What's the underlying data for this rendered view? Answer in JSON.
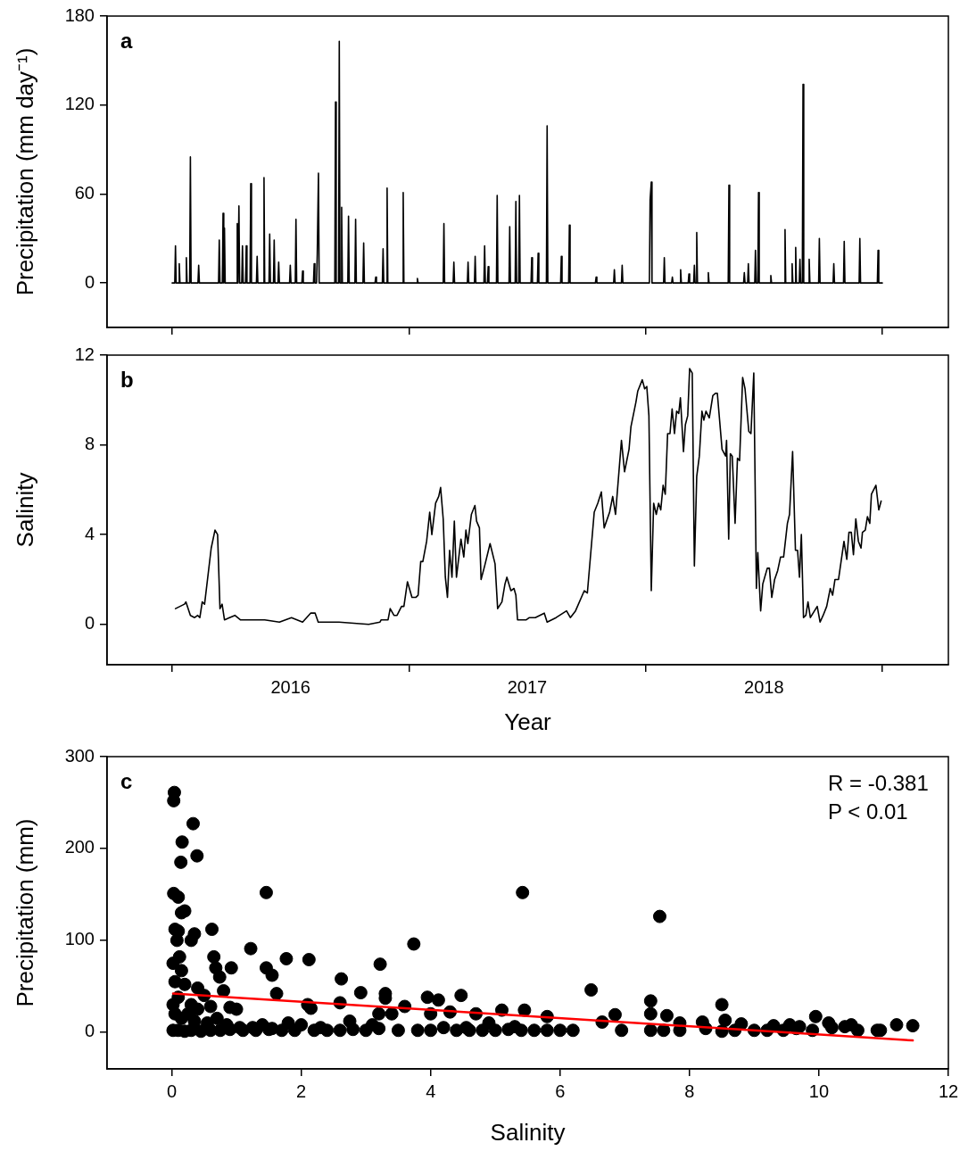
{
  "chart_data": [
    {
      "type": "line",
      "title": "a",
      "ylabel": "Precipitation (mm day⁻¹)",
      "color": "#000000",
      "marker": "none",
      "tick_labels": "y",
      "x": [
        2016.0,
        2016.011,
        2016.014,
        2016.017,
        2016.027,
        2016.03,
        2016.033,
        2016.057,
        2016.06,
        2016.063,
        2016.074,
        2016.077,
        2016.08,
        2016.109,
        2016.112,
        2016.115,
        2016.196,
        2016.199,
        2016.202,
        2016.212,
        2016.215,
        2016.218,
        2016.221,
        2016.224,
        2016.272,
        2016.275,
        2016.278,
        2016.282,
        2016.285,
        2016.294,
        2016.297,
        2016.3,
        2016.31,
        2016.313,
        2016.316,
        2016.329,
        2016.332,
        2016.335,
        2016.356,
        2016.359,
        2016.362,
        2016.385,
        2016.388,
        2016.391,
        2016.409,
        2016.412,
        2016.415,
        2016.428,
        2016.431,
        2016.434,
        2016.447,
        2016.45,
        2016.453,
        2016.496,
        2016.499,
        2016.502,
        2016.52,
        2016.523,
        2016.526,
        2016.548,
        2016.551,
        2016.554,
        2016.597,
        2016.6,
        2016.603,
        2016.61,
        2016.613,
        2016.618,
        2016.621,
        2016.687,
        2016.69,
        2016.693,
        2016.703,
        2016.706,
        2016.709,
        2016.713,
        2016.716,
        2016.719,
        2016.742,
        2016.745,
        2016.748,
        2016.772,
        2016.775,
        2016.778,
        2016.806,
        2016.809,
        2016.812,
        2016.857,
        2016.86,
        2016.863,
        2016.888,
        2016.891,
        2016.894,
        2016.905,
        2016.908,
        2016.911,
        2016.973,
        2016.976,
        2016.979,
        2017.033,
        2017.036,
        2017.039,
        2017.145,
        2017.148,
        2017.151,
        2017.187,
        2017.19,
        2017.193,
        2017.247,
        2017.25,
        2017.253,
        2017.277,
        2017.28,
        2017.283,
        2017.317,
        2017.32,
        2017.323,
        2017.332,
        2017.335,
        2017.338,
        2017.37,
        2017.373,
        2017.376,
        2017.423,
        2017.426,
        2017.429,
        2017.449,
        2017.452,
        2017.455,
        2017.464,
        2017.467,
        2017.47,
        2017.516,
        2017.519,
        2017.522,
        2017.543,
        2017.546,
        2017.549,
        2017.581,
        2017.584,
        2017.587,
        2017.641,
        2017.644,
        2017.647,
        2017.675,
        2017.678,
        2017.681,
        2017.788,
        2017.791,
        2017.794,
        2017.865,
        2017.868,
        2017.871,
        2017.898,
        2017.901,
        2017.904,
        2018.016,
        2018.019,
        2018.024,
        2018.027,
        2018.076,
        2018.079,
        2018.082,
        2018.11,
        2018.113,
        2018.116,
        2018.145,
        2018.148,
        2018.151,
        2018.18,
        2018.183,
        2018.186,
        2018.203,
        2018.206,
        2018.209,
        2018.213,
        2018.216,
        2018.219,
        2018.262,
        2018.265,
        2018.268,
        2018.349,
        2018.352,
        2018.355,
        2018.414,
        2018.417,
        2018.42,
        2018.431,
        2018.434,
        2018.437,
        2018.461,
        2018.464,
        2018.467,
        2018.474,
        2018.477,
        2018.48,
        2018.526,
        2018.529,
        2018.532,
        2018.586,
        2018.589,
        2018.592,
        2018.616,
        2018.619,
        2018.622,
        2018.631,
        2018.634,
        2018.637,
        2018.649,
        2018.652,
        2018.655,
        2018.662,
        2018.665,
        2018.668,
        2018.688,
        2018.691,
        2018.694,
        2018.731,
        2018.734,
        2018.737,
        2018.792,
        2018.795,
        2018.798,
        2018.836,
        2018.839,
        2018.842,
        2018.902,
        2018.905,
        2018.908,
        2018.979,
        2018.982,
        2018.985,
        2019.0
      ],
      "values": [
        0,
        0,
        25,
        0,
        0,
        13,
        0,
        0,
        17,
        0,
        0,
        85,
        0,
        0,
        12,
        0,
        0,
        29,
        0,
        0,
        47,
        0,
        37,
        0,
        0,
        40,
        0,
        52,
        0,
        0,
        25,
        0,
        0,
        25,
        0,
        0,
        67,
        0,
        0,
        18,
        0,
        0,
        71,
        0,
        0,
        33,
        0,
        0,
        29,
        0,
        0,
        14,
        0,
        0,
        12,
        0,
        0,
        43,
        0,
        0,
        8,
        0,
        0,
        13,
        0,
        0,
        20,
        74,
        0,
        0,
        122,
        0,
        0,
        163,
        0,
        0,
        51,
        0,
        0,
        45,
        0,
        0,
        43,
        0,
        0,
        27,
        0,
        0,
        4,
        0,
        0,
        23,
        0,
        0,
        64,
        0,
        0,
        61,
        0,
        0,
        3,
        0,
        0,
        40,
        0,
        0,
        14,
        0,
        0,
        14,
        0,
        0,
        18,
        0,
        0,
        25,
        0,
        0,
        11,
        0,
        0,
        59,
        0,
        0,
        38,
        0,
        0,
        55,
        0,
        0,
        59,
        0,
        0,
        17,
        0,
        0,
        20,
        0,
        0,
        106,
        0,
        0,
        18,
        0,
        0,
        39,
        0,
        0,
        4,
        0,
        0,
        9,
        0,
        0,
        12,
        0,
        0,
        56,
        68,
        0,
        0,
        17,
        0,
        0,
        4,
        0,
        0,
        9,
        0,
        0,
        6,
        0,
        0,
        12,
        0,
        0,
        34,
        0,
        0,
        7,
        0,
        0,
        66,
        0,
        0,
        7,
        0,
        0,
        13,
        0,
        0,
        22,
        0,
        0,
        61,
        0,
        0,
        5,
        0,
        0,
        36,
        0,
        0,
        13,
        0,
        0,
        24,
        0,
        0,
        16,
        0,
        0,
        134,
        0,
        0,
        16,
        0,
        0,
        30,
        0,
        0,
        13,
        0,
        0,
        28,
        0,
        0,
        30,
        0,
        0,
        22,
        0,
        0
      ],
      "xlim": [
        2015.725,
        2019.279
      ],
      "xticks": [
        {
          "value": 2016,
          "label": null
        },
        {
          "value": 2017,
          "label": null
        },
        {
          "value": 2018,
          "label": null
        },
        {
          "value": 2019,
          "label": null
        }
      ],
      "ylim": [
        -30,
        180
      ],
      "yticks": [
        0,
        60,
        120,
        180
      ]
    },
    {
      "type": "line",
      "title": "b",
      "xlabel": "Year",
      "ylabel": "Salinity",
      "color": "#000000",
      "marker": "none",
      "x": [
        2016.014,
        2016.052,
        2016.058,
        2016.077,
        2016.095,
        2016.108,
        2016.117,
        2016.127,
        2016.137,
        2016.165,
        2016.181,
        2016.192,
        2016.202,
        2016.211,
        2016.221,
        2016.265,
        2016.288,
        2016.391,
        2016.453,
        2016.504,
        2016.551,
        2016.585,
        2016.604,
        2016.617,
        2016.705,
        2016.83,
        2016.878,
        2016.883,
        2016.912,
        2016.921,
        2016.937,
        2016.95,
        2016.969,
        2016.979,
        2016.994,
        2017.013,
        2017.029,
        2017.039,
        2017.05,
        2017.059,
        2017.075,
        2017.088,
        2017.097,
        2017.113,
        2017.126,
        2017.134,
        2017.145,
        2017.154,
        2017.163,
        2017.172,
        2017.182,
        2017.192,
        2017.201,
        2017.22,
        2017.232,
        2017.241,
        2017.249,
        2017.264,
        2017.279,
        2017.286,
        2017.298,
        2017.305,
        2017.32,
        2017.343,
        2017.364,
        2017.375,
        2017.393,
        2017.406,
        2017.414,
        2017.431,
        2017.444,
        2017.452,
        2017.459,
        2017.496,
        2017.509,
        2017.534,
        2017.572,
        2017.584,
        2017.622,
        2017.666,
        2017.682,
        2017.704,
        2017.741,
        2017.754,
        2017.783,
        2017.798,
        2017.813,
        2017.825,
        2017.848,
        2017.861,
        2017.873,
        2017.898,
        2017.911,
        2017.93,
        2017.938,
        2017.959,
        2017.967,
        2017.986,
        2017.996,
        2018.005,
        2018.014,
        2018.024,
        2018.034,
        2018.045,
        2018.055,
        2018.064,
        2018.074,
        2018.083,
        2018.093,
        2018.103,
        2018.112,
        2018.122,
        2018.131,
        2018.14,
        2018.147,
        2018.16,
        2018.168,
        2018.178,
        2018.186,
        2018.197,
        2018.206,
        2018.216,
        2018.227,
        2018.238,
        2018.246,
        2018.255,
        2018.269,
        2018.284,
        2018.296,
        2018.303,
        2018.323,
        2018.338,
        2018.342,
        2018.351,
        2018.358,
        2018.366,
        2018.378,
        2018.388,
        2018.397,
        2018.41,
        2018.42,
        2018.436,
        2018.445,
        2018.457,
        2018.468,
        2018.474,
        2018.486,
        2018.495,
        2018.514,
        2018.523,
        2018.533,
        2018.545,
        2018.558,
        2018.57,
        2018.583,
        2018.599,
        2018.608,
        2018.621,
        2018.633,
        2018.642,
        2018.65,
        2018.658,
        2018.667,
        2018.677,
        2018.686,
        2018.696,
        2018.725,
        2018.737,
        2018.75,
        2018.765,
        2018.78,
        2018.79,
        2018.8,
        2018.815,
        2018.838,
        2018.85,
        2018.859,
        2018.869,
        2018.878,
        2018.888,
        2018.899,
        2018.91,
        2018.916,
        2018.928,
        2018.937,
        2018.947,
        2018.954,
        2018.973,
        2018.985,
        2018.995
      ],
      "values": [
        0.7,
        0.9,
        1.0,
        0.4,
        0.3,
        0.4,
        0.3,
        1.0,
        0.9,
        3.4,
        4.2,
        4.0,
        0.7,
        0.9,
        0.2,
        0.4,
        0.2,
        0.2,
        0.1,
        0.3,
        0.1,
        0.5,
        0.5,
        0.1,
        0.1,
        0.0,
        0.1,
        0.2,
        0.2,
        0.7,
        0.4,
        0.4,
        0.8,
        0.8,
        1.9,
        1.2,
        1.2,
        1.3,
        2.8,
        2.8,
        3.7,
        5.0,
        4.0,
        5.4,
        5.7,
        6.1,
        4.7,
        2.1,
        1.2,
        3.3,
        2.1,
        4.6,
        2.1,
        3.8,
        3.0,
        4.2,
        3.6,
        4.9,
        5.3,
        4.6,
        4.3,
        2.0,
        2.6,
        3.6,
        2.7,
        0.7,
        1.0,
        1.8,
        2.1,
        1.5,
        1.6,
        1.3,
        0.2,
        0.2,
        0.3,
        0.3,
        0.5,
        0.1,
        0.3,
        0.6,
        0.3,
        0.6,
        1.5,
        1.4,
        5.0,
        5.4,
        5.9,
        4.3,
        5.0,
        5.7,
        4.9,
        8.2,
        6.8,
        7.8,
        8.8,
        9.9,
        10.4,
        10.9,
        10.5,
        10.6,
        9.3,
        1.5,
        5.4,
        4.9,
        5.4,
        5.1,
        6.2,
        5.8,
        8.5,
        8.5,
        9.6,
        8.5,
        9.5,
        9.4,
        10.1,
        7.7,
        8.9,
        9.3,
        11.4,
        11.2,
        2.6,
        6.6,
        7.5,
        9.5,
        9.1,
        9.5,
        9.2,
        10.2,
        10.3,
        10.3,
        7.8,
        7.5,
        8.2,
        3.8,
        7.6,
        7.5,
        4.5,
        7.4,
        7.3,
        11.0,
        10.5,
        8.6,
        8.5,
        11.2,
        1.6,
        3.2,
        0.6,
        1.8,
        2.5,
        2.5,
        1.2,
        2.0,
        2.4,
        3.0,
        3.0,
        4.5,
        4.9,
        7.7,
        3.3,
        3.3,
        2.1,
        4.0,
        0.3,
        0.4,
        1.0,
        0.3,
        0.8,
        0.1,
        0.4,
        0.8,
        1.6,
        1.3,
        2.0,
        2.0,
        3.7,
        2.9,
        4.1,
        4.1,
        3.1,
        4.7,
        3.7,
        3.4,
        4.1,
        4.2,
        4.8,
        4.5,
        5.8,
        6.2,
        5.1,
        5.5
      ],
      "xlim": [
        2015.725,
        2019.279
      ],
      "xticks": [
        {
          "value": 2016,
          "label": null
        },
        {
          "value": 2016.5,
          "label": "2016"
        },
        {
          "value": 2017,
          "label": null
        },
        {
          "value": 2017.5,
          "label": "2017"
        },
        {
          "value": 2018,
          "label": null
        },
        {
          "value": 2018.5,
          "label": "2018"
        },
        {
          "value": 2019,
          "label": null
        }
      ],
      "ylim": [
        -1.8,
        12
      ],
      "yticks": [
        0,
        4,
        8,
        12
      ]
    },
    {
      "type": "scatter",
      "title": "c",
      "xlabel": "Salinity",
      "ylabel": "Precipitation (mm)",
      "annotations": [
        "R = -0.381",
        "P < 0.01"
      ],
      "series": [
        {
          "type": "scatter",
          "marker": "circle",
          "color": "#000000",
          "x": [
            0.04,
            0.03,
            0.33,
            0.16,
            0.39,
            0.14,
            1.46,
            0.03,
            5.42,
            0.1,
            0.15,
            0.2,
            0.05,
            0.62,
            0.35,
            0.1,
            0.3,
            0.08,
            7.54,
            3.74,
            1.22,
            3.22,
            0.02,
            0.12,
            0.15,
            0.65,
            0.68,
            0.92,
            1.46,
            1.55,
            1.77,
            2.12,
            0.74,
            0.8,
            1.62,
            6.48,
            2.62,
            2.92,
            3.3,
            3.3,
            4.47,
            3.95,
            4.12,
            7.4,
            8.5,
            0.05,
            0.2,
            0.4,
            0.5,
            0.1,
            0.02,
            0.3,
            0.6,
            0.9,
            1.0,
            1.8,
            2.1,
            2.15,
            2.6,
            3.2,
            3.4,
            3.6,
            4.0,
            4.3,
            4.7,
            5.1,
            5.45,
            5.8,
            6.85,
            7.4,
            7.65,
            7.85,
            8.2,
            8.55,
            8.8,
            9.3,
            9.55,
            9.7,
            9.95,
            10.15,
            10.4,
            10.5,
            10.95,
            11.2,
            11.45,
            0.02,
            0.1,
            0.2,
            0.3,
            0.45,
            0.6,
            0.75,
            0.9,
            1.1,
            1.3,
            1.5,
            1.7,
            1.9,
            2.2,
            2.4,
            2.6,
            2.8,
            3.0,
            3.2,
            3.5,
            3.8,
            4.0,
            4.2,
            4.4,
            4.6,
            4.8,
            5.0,
            5.2,
            5.4,
            5.6,
            5.8,
            6.0,
            6.2,
            6.65,
            6.95,
            7.4,
            7.6,
            7.85,
            8.25,
            8.5,
            8.7,
            9.0,
            9.2,
            9.45,
            9.65,
            9.9,
            10.2,
            10.6,
            10.9,
            0.05,
            0.15,
            0.25,
            0.35,
            0.4,
            0.55,
            0.7,
            0.85,
            1.05,
            1.25,
            1.4,
            1.55,
            2.0,
            2.3,
            2.75,
            3.1,
            4.55,
            4.9,
            5.3
          ],
          "values": [
            261,
            252,
            227,
            207,
            192,
            185,
            152,
            151,
            152,
            147,
            130,
            132,
            112,
            112,
            107,
            110,
            100,
            100,
            126,
            96,
            91,
            74,
            75,
            82,
            67,
            82,
            70,
            70,
            70,
            62,
            80,
            79,
            60,
            45,
            42,
            46,
            58,
            43,
            42,
            37,
            40,
            38,
            35,
            34,
            30,
            55,
            52,
            48,
            40,
            38,
            30,
            30,
            28,
            27,
            25,
            10,
            30,
            26,
            32,
            20,
            20,
            28,
            20,
            22,
            20,
            24,
            24,
            17,
            19,
            20,
            18,
            10,
            11,
            13,
            9,
            7,
            8,
            6,
            17,
            10,
            6,
            8,
            2,
            8,
            7,
            2,
            2,
            1,
            2,
            1,
            2,
            2,
            3,
            2,
            2,
            3,
            2,
            2,
            2,
            2,
            2,
            3,
            2,
            4,
            2,
            2,
            2,
            5,
            2,
            2,
            2,
            2,
            3,
            2,
            2,
            2,
            2,
            2,
            11,
            2,
            2,
            2,
            2,
            4,
            1,
            2,
            2,
            2,
            2,
            4,
            2,
            5,
            2,
            2,
            20,
            15,
            20,
            12,
            25,
            10,
            15,
            8,
            5,
            5,
            8,
            4,
            8,
            5,
            12,
            8,
            5,
            10,
            6
          ]
        },
        {
          "type": "line",
          "marker": "none",
          "color": "#ff0000",
          "x": [
            0.02,
            11.45
          ],
          "values": [
            42,
            -9
          ]
        }
      ],
      "xlim": [
        -1,
        12
      ],
      "xticks": [
        0,
        2,
        4,
        6,
        8,
        10,
        12
      ],
      "ylim": [
        -40,
        300
      ],
      "yticks": [
        0,
        100,
        200,
        300
      ]
    }
  ]
}
